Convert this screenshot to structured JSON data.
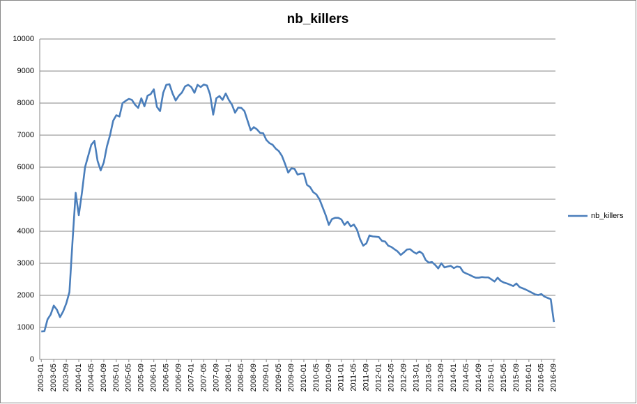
{
  "chart_data": {
    "type": "line",
    "title": "nb_killers",
    "categories": [
      "2003-01",
      null,
      null,
      null,
      "2003-05",
      null,
      null,
      null,
      "2003-09",
      null,
      null,
      null,
      "2004-01",
      null,
      null,
      null,
      "2004-05",
      null,
      null,
      null,
      "2004-09",
      null,
      null,
      null,
      "2005-01",
      null,
      null,
      null,
      "2005-05",
      null,
      null,
      null,
      "2005-09",
      null,
      null,
      null,
      "2006-01",
      null,
      null,
      null,
      "2006-05",
      null,
      null,
      null,
      "2006-09",
      null,
      null,
      null,
      "2007-01",
      null,
      null,
      null,
      "2007-05",
      null,
      null,
      null,
      "2007-09",
      null,
      null,
      null,
      "2008-01",
      null,
      null,
      null,
      "2008-05",
      null,
      null,
      null,
      "2008-09",
      null,
      null,
      null,
      "2009-01",
      null,
      null,
      null,
      "2009-05",
      null,
      null,
      null,
      "2009-09",
      null,
      null,
      null,
      "2010-01",
      null,
      null,
      null,
      "2010-05",
      null,
      null,
      null,
      "2010-09",
      null,
      null,
      null,
      "2011-01",
      null,
      null,
      null,
      "2011-05",
      null,
      null,
      null,
      "2011-09",
      null,
      null,
      null,
      "2012-01",
      null,
      null,
      null,
      "2012-05",
      null,
      null,
      null,
      "2012-09",
      null,
      null,
      null,
      "2013-01",
      null,
      null,
      null,
      "2013-05",
      null,
      null,
      null,
      "2013-09",
      null,
      null,
      null,
      "2014-01",
      null,
      null,
      null,
      "2014-05",
      null,
      null,
      null,
      "2014-09",
      null,
      null,
      null,
      "2015-01",
      null,
      null,
      null,
      "2015-05",
      null,
      null,
      null,
      "2015-09",
      null,
      null,
      null,
      "2016-01",
      null,
      null,
      null,
      "2016-05",
      null,
      null,
      null,
      "2016-09"
    ],
    "series": [
      {
        "name": "nb_killers",
        "color": "#4a7ebb",
        "values": [
          870,
          880,
          1250,
          1400,
          1680,
          1550,
          1320,
          1500,
          1750,
          2100,
          3700,
          5200,
          4500,
          5200,
          6000,
          6350,
          6700,
          6820,
          6200,
          5900,
          6150,
          6650,
          7000,
          7450,
          7620,
          7580,
          8000,
          8070,
          8130,
          8100,
          7950,
          7850,
          8150,
          7900,
          8230,
          8280,
          8430,
          7880,
          7750,
          8320,
          8570,
          8590,
          8300,
          8080,
          8230,
          8330,
          8520,
          8570,
          8500,
          8320,
          8570,
          8500,
          8580,
          8550,
          8270,
          7640,
          8150,
          8220,
          8100,
          8300,
          8100,
          7950,
          7700,
          7860,
          7850,
          7750,
          7450,
          7150,
          7250,
          7180,
          7070,
          7060,
          6850,
          6750,
          6700,
          6580,
          6500,
          6350,
          6100,
          5830,
          5960,
          5950,
          5770,
          5800,
          5800,
          5450,
          5380,
          5220,
          5150,
          5000,
          4750,
          4500,
          4200,
          4380,
          4420,
          4420,
          4370,
          4200,
          4300,
          4150,
          4210,
          4050,
          3750,
          3550,
          3620,
          3870,
          3840,
          3830,
          3820,
          3700,
          3680,
          3550,
          3510,
          3440,
          3370,
          3260,
          3340,
          3430,
          3440,
          3360,
          3300,
          3370,
          3300,
          3100,
          3020,
          3040,
          2950,
          2840,
          3000,
          2870,
          2900,
          2920,
          2850,
          2900,
          2880,
          2730,
          2680,
          2640,
          2590,
          2550,
          2550,
          2570,
          2560,
          2560,
          2500,
          2430,
          2550,
          2450,
          2400,
          2370,
          2330,
          2290,
          2370,
          2260,
          2220,
          2180,
          2130,
          2080,
          2030,
          2010,
          2040,
          1960,
          1920,
          1880,
          1170
        ]
      }
    ],
    "ylim": [
      0,
      10000
    ],
    "yticks": [
      0,
      1000,
      2000,
      3000,
      4000,
      5000,
      6000,
      7000,
      8000,
      9000,
      10000
    ],
    "grid": true,
    "legend": "right"
  }
}
